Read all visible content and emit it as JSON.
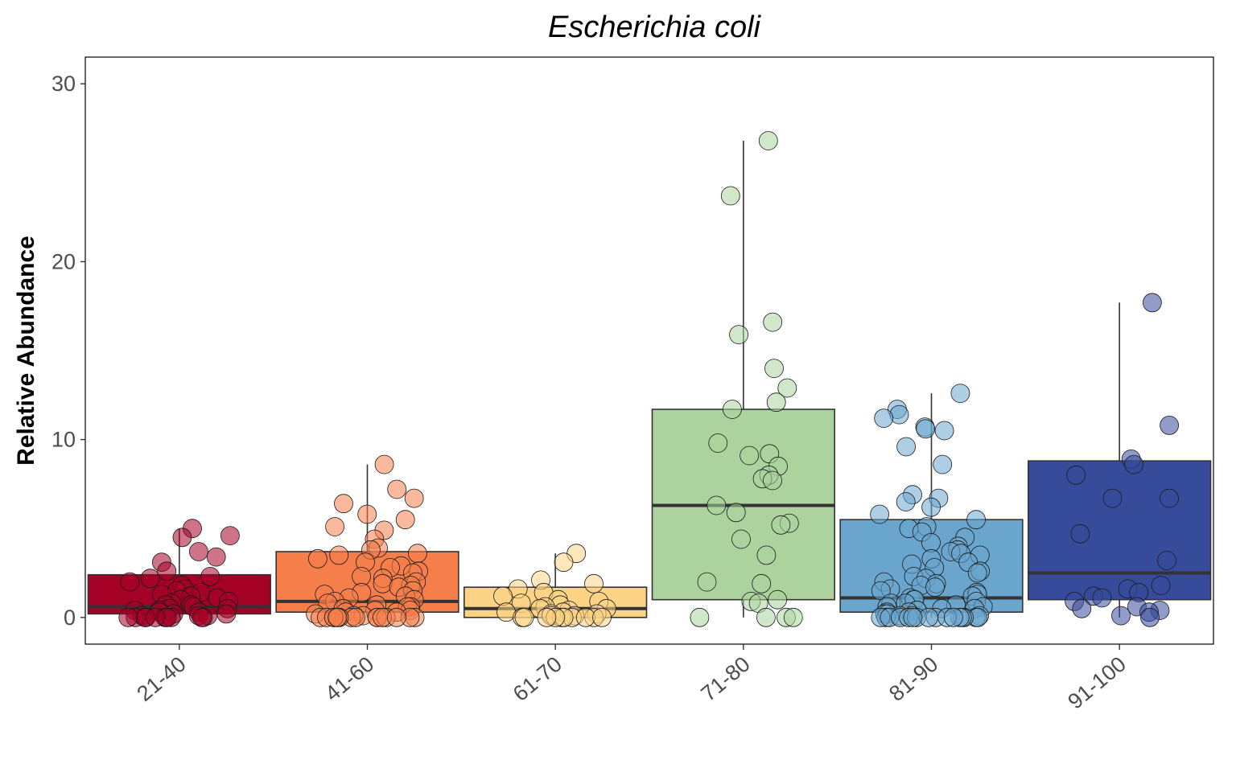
{
  "chart_data": {
    "type": "boxplot",
    "title": "Escherichia coli",
    "xlabel": "",
    "ylabel": "Relative Abundance",
    "ylim": [
      -1.5,
      31.5
    ],
    "yticks": [
      0,
      10,
      20,
      30
    ],
    "grid": false,
    "legend": "none",
    "categories": [
      "21-40",
      "41-60",
      "61-70",
      "71-80",
      "81-90",
      "91-100"
    ],
    "colors": [
      "#a50026",
      "#f67e4b",
      "#fdd485",
      "#acd39e",
      "#6aa5cd",
      "#364b9a"
    ],
    "boxes": [
      {
        "category": "21-40",
        "q1": 0.2,
        "median": 0.6,
        "q3": 2.4,
        "whisker_low": 0,
        "whisker_high": 5.0
      },
      {
        "category": "41-60",
        "q1": 0.3,
        "median": 0.9,
        "q3": 3.7,
        "whisker_low": 0,
        "whisker_high": 8.6
      },
      {
        "category": "61-70",
        "q1": 0.0,
        "median": 0.5,
        "q3": 1.7,
        "whisker_low": 0,
        "whisker_high": 3.6
      },
      {
        "category": "71-80",
        "q1": 1.0,
        "median": 6.3,
        "q3": 11.7,
        "whisker_low": 0,
        "whisker_high": 26.8
      },
      {
        "category": "81-90",
        "q1": 0.3,
        "median": 1.1,
        "q3": 5.5,
        "whisker_low": 0,
        "whisker_high": 12.6
      },
      {
        "category": "91-100",
        "q1": 1.0,
        "median": 2.5,
        "q3": 8.8,
        "whisker_low": 0,
        "whisker_high": 17.7
      }
    ],
    "points": [
      {
        "category": "21-40",
        "values": [
          5.0,
          4.6,
          4.5,
          3.7,
          3.4,
          3.1,
          2.6,
          2.3,
          2.2,
          2.0,
          1.8,
          1.6,
          1.5,
          1.4,
          1.3,
          1.2,
          1.1,
          1.0,
          0.9,
          0.8,
          0.7,
          0.7,
          0.6,
          0.5,
          0.5,
          0.4,
          0.4,
          0.3,
          0.3,
          0.2,
          0.2,
          0.1,
          0.1,
          0.1,
          0.0,
          0.0,
          0.0,
          0.0,
          0.0,
          0.0,
          0.0,
          0.0,
          0.0,
          0.0,
          0.0,
          0.0
        ]
      },
      {
        "category": "41-60",
        "values": [
          8.6,
          7.2,
          6.7,
          6.4,
          5.8,
          5.5,
          5.1,
          4.9,
          4.4,
          3.9,
          3.8,
          3.6,
          3.5,
          3.3,
          3.1,
          2.9,
          2.8,
          2.6,
          2.5,
          2.3,
          2.2,
          2.0,
          1.9,
          1.8,
          1.7,
          1.5,
          1.4,
          1.3,
          1.2,
          1.1,
          1.0,
          0.9,
          0.8,
          0.7,
          0.6,
          0.6,
          0.5,
          0.4,
          0.4,
          0.3,
          0.3,
          0.2,
          0.1,
          0.1,
          0.0,
          0.0,
          0.0,
          0.0,
          0.0,
          0.0,
          0.0,
          0.0,
          0.0,
          0.0,
          0.0,
          0.0,
          0.0,
          0.0,
          0.0,
          0.0
        ]
      },
      {
        "category": "61-70",
        "values": [
          3.6,
          3.1,
          2.1,
          1.9,
          1.6,
          1.4,
          1.2,
          1.0,
          0.9,
          0.8,
          0.7,
          0.6,
          0.5,
          0.5,
          0.4,
          0.3,
          0.3,
          0.2,
          0.2,
          0.1,
          0.1,
          0.0,
          0.0,
          0.0,
          0.0,
          0.0,
          0.0,
          0.0,
          0.0,
          0.0,
          0.0
        ]
      },
      {
        "category": "71-80",
        "values": [
          26.8,
          23.7,
          16.6,
          15.9,
          14.0,
          12.9,
          12.1,
          11.7,
          9.8,
          9.2,
          9.1,
          8.5,
          8.0,
          7.8,
          7.7,
          6.3,
          5.9,
          5.3,
          5.2,
          4.4,
          3.5,
          2.0,
          1.9,
          1.0,
          0.9,
          0.8,
          0.0,
          0.0,
          0.0,
          0.0
        ]
      },
      {
        "category": "81-90",
        "values": [
          12.6,
          11.7,
          11.4,
          11.2,
          10.7,
          10.6,
          10.5,
          9.6,
          8.6,
          6.9,
          6.7,
          6.5,
          6.2,
          5.8,
          5.5,
          5.1,
          5.0,
          4.8,
          4.5,
          4.2,
          4.0,
          3.8,
          3.7,
          3.6,
          3.5,
          3.3,
          3.1,
          3.0,
          2.8,
          2.6,
          2.5,
          2.3,
          2.2,
          2.0,
          1.9,
          1.8,
          1.7,
          1.6,
          1.5,
          1.4,
          1.3,
          1.2,
          1.1,
          1.0,
          1.0,
          0.9,
          0.8,
          0.8,
          0.7,
          0.6,
          0.6,
          0.5,
          0.5,
          0.4,
          0.4,
          0.3,
          0.3,
          0.2,
          0.2,
          0.1,
          0.1,
          0.1,
          0.0,
          0.0,
          0.0,
          0.0,
          0.0,
          0.0,
          0.0,
          0.0,
          0.0,
          0.0,
          0.0,
          0.0,
          0.0,
          0.0,
          0.0,
          0.0
        ]
      },
      {
        "category": "91-100",
        "values": [
          17.7,
          10.8,
          8.9,
          8.6,
          8.0,
          6.7,
          6.7,
          4.7,
          3.2,
          1.8,
          1.6,
          1.4,
          1.2,
          1.1,
          0.9,
          0.6,
          0.5,
          0.4,
          0.3,
          0.1,
          0.0
        ]
      }
    ]
  }
}
